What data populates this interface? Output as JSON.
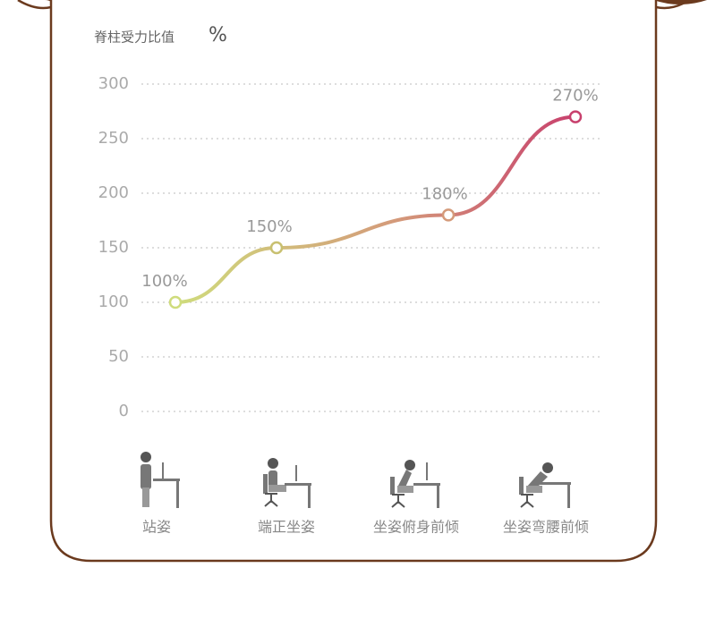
{
  "chart_data": {
    "type": "line",
    "title": "脊柱受力比值",
    "ylabel": "%",
    "categories": [
      "站姿",
      "端正坐姿",
      "坐姿俯身前倾",
      "坐姿弯腰前倾"
    ],
    "values": [
      100,
      150,
      180,
      270
    ],
    "value_labels": [
      "100%",
      "150%",
      "180%",
      "270%"
    ],
    "color": [
      "#cfdc7c",
      "#c8406d"
    ],
    "ylim": [
      0,
      300
    ],
    "yticks": [
      0,
      50,
      100,
      150,
      200,
      250,
      300
    ],
    "grid": true
  }
}
